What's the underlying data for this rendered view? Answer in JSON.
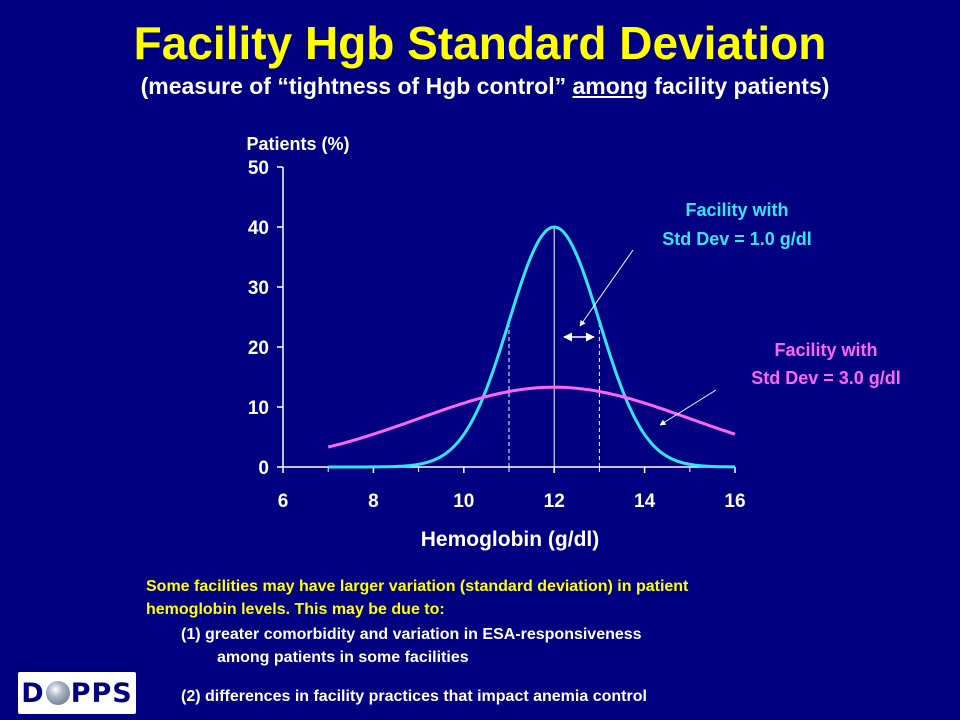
{
  "slide": {
    "title": "Facility Hgb Standard Deviation",
    "subtitle_before": "(measure of “tightness of Hgb control” ",
    "subtitle_underlined": "among",
    "subtitle_after": " facility patients)"
  },
  "chart_data": {
    "type": "line",
    "xlabel": "Hemoglobin (g/dl)",
    "ylabel": "Patients (%)",
    "xlim": [
      6,
      16
    ],
    "ylim": [
      0,
      50
    ],
    "xticks": [
      "6",
      "8",
      "10",
      "12",
      "14",
      "16"
    ],
    "yticks": [
      "0",
      "10",
      "20",
      "30",
      "40",
      "50"
    ],
    "grid": false,
    "series": [
      {
        "name": "Facility with Std Dev = 1.0 g/dl",
        "color": "#33E6FF",
        "x": [
          7,
          8,
          9,
          9.5,
          10,
          10.5,
          11,
          11.5,
          12,
          12.5,
          13,
          13.5,
          14,
          14.5,
          15,
          16
        ],
        "y": [
          0,
          0.1,
          0.2,
          0.6,
          2.2,
          7.2,
          20,
          35,
          40,
          35,
          24,
          12,
          5,
          1.6,
          0.5,
          0.1
        ]
      },
      {
        "name": "Facility with Std Dev = 3.0 g/dl",
        "color": "#FF66FF",
        "x": [
          7,
          8,
          9,
          10,
          11,
          12,
          13,
          14,
          15,
          16
        ],
        "y": [
          0.3,
          1.2,
          3.5,
          7.5,
          11.5,
          13.3,
          11.5,
          7.5,
          3.5,
          1
        ]
      }
    ],
    "reference_lines": [
      {
        "x": 11,
        "style": "dashed"
      },
      {
        "x": 12,
        "style": "solid"
      },
      {
        "x": 13,
        "style": "dashed"
      }
    ],
    "annotations": [
      {
        "line1": "Facility with",
        "line2": "Std Dev = 1.0 g/dl",
        "color": "#33E6FF"
      },
      {
        "line1": "Facility with",
        "line2": "Std Dev = 3.0 g/dl",
        "color": "#FF66FF"
      }
    ]
  },
  "notes": {
    "line1": "Some facilities may have larger variation (standard deviation) in patient",
    "line2": "hemoglobin levels. This may be due to:",
    "item1_a": "(1) greater comorbidity and variation in ESA-responsiveness",
    "item1_b": "among patients in some facilities",
    "item2": "(2) differences in facility practices that impact anemia control"
  },
  "logo": {
    "text_before": "D",
    "text_after": "PPS"
  },
  "colors": {
    "background": "#000080",
    "title": "#FFFF00",
    "axis": "#FFFFFF"
  }
}
